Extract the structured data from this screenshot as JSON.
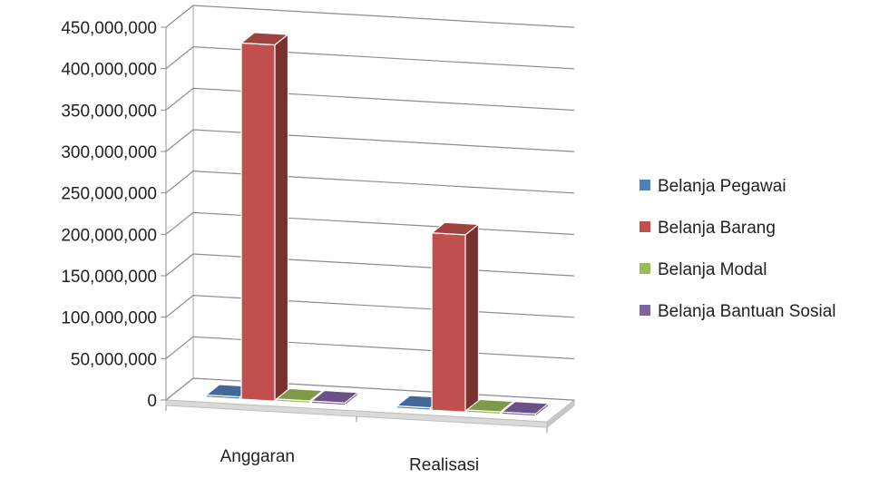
{
  "chart_data": {
    "type": "bar",
    "style": "3d-clustered-column",
    "title": "",
    "xlabel": "",
    "ylabel": "",
    "categories": [
      "Anggaran",
      "Realisasi"
    ],
    "series": [
      {
        "name": "Belanja Pegawai",
        "values": [
          0,
          0
        ],
        "color": "#4F81BD"
      },
      {
        "name": "Belanja Barang",
        "values": [
          430000000,
          214000000
        ],
        "color": "#C0504D"
      },
      {
        "name": "Belanja Modal",
        "values": [
          0,
          0
        ],
        "color": "#9BBB59"
      },
      {
        "name": "Belanja Bantuan Sosial",
        "values": [
          0,
          0
        ],
        "color": "#8064A2"
      }
    ],
    "ylim": [
      0,
      450000000
    ],
    "yticks": [
      "0",
      "50,000,000",
      "100,000,000",
      "150,000,000",
      "200,000,000",
      "250,000,000",
      "300,000,000",
      "350,000,000",
      "400,000,000",
      "450,000,000"
    ],
    "grid": true,
    "legend": "right"
  }
}
